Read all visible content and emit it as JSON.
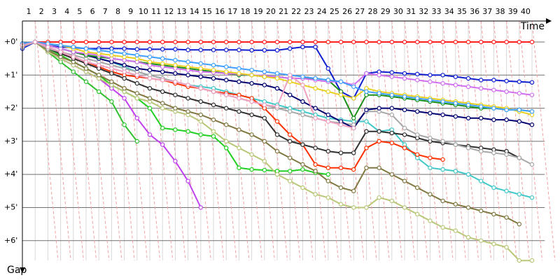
{
  "chart_data": {
    "type": "line",
    "x_label": "Time",
    "y_label": "Gap",
    "x": [
      0,
      1,
      2,
      3,
      4,
      5,
      6,
      7,
      8,
      9,
      10,
      11,
      12,
      13,
      14,
      15,
      16,
      17,
      18,
      19,
      20,
      21,
      22,
      23,
      24,
      25,
      26,
      27,
      28,
      29,
      30,
      31,
      32,
      33,
      34,
      35,
      36,
      37,
      38,
      39,
      40
    ],
    "xlim": [
      0,
      41
    ],
    "xticks": [
      1,
      2,
      3,
      4,
      5,
      6,
      7,
      8,
      9,
      10,
      11,
      12,
      13,
      14,
      15,
      16,
      17,
      18,
      19,
      20,
      21,
      22,
      23,
      24,
      25,
      26,
      27,
      28,
      29,
      30,
      31,
      32,
      33,
      34,
      35,
      36,
      37,
      38,
      39,
      40
    ],
    "ylim": [
      -0.6,
      6.6
    ],
    "yticks": [
      {
        "value": 0,
        "label": "+0'"
      },
      {
        "value": 1,
        "label": "+1'"
      },
      {
        "value": 2,
        "label": "+2'"
      },
      {
        "value": 3,
        "label": "+3'"
      },
      {
        "value": 4,
        "label": "+4'"
      },
      {
        "value": 5,
        "label": "+5'"
      },
      {
        "value": 6,
        "label": "+6'"
      }
    ],
    "grid": true,
    "series": [
      {
        "color": "#ff2020",
        "values": [
          0.1,
          0,
          0,
          0,
          0,
          0,
          0,
          0,
          0,
          0,
          0,
          0,
          0,
          0,
          0,
          0,
          0,
          0,
          0,
          0,
          0,
          0,
          0,
          0,
          0,
          0,
          0,
          0,
          0,
          0,
          0,
          0,
          0,
          0,
          0,
          0,
          0,
          0,
          0,
          0,
          0
        ]
      },
      {
        "color": "#1020d0",
        "values": [
          0.2,
          0,
          0.1,
          0.15,
          0.17,
          0.2,
          0.2,
          0.2,
          0.2,
          0.22,
          0.22,
          0.22,
          0.22,
          0.24,
          0.24,
          0.24,
          0.24,
          0.24,
          0.25,
          0.25,
          0.25,
          0.2,
          0.15,
          0.15,
          0.8,
          1.5,
          1.7,
          0.95,
          0.9,
          0.92,
          0.95,
          0.97,
          1.0,
          1.0,
          1.05,
          1.1,
          1.15,
          1.15,
          1.18,
          1.2,
          1.22
        ]
      },
      {
        "color": "#c040f0",
        "values": [
          0.1,
          0,
          0.3,
          0.5,
          0.7,
          0.9,
          1.1,
          1.4,
          1.7,
          2.3,
          2.8,
          3.1,
          3.6,
          4.2,
          5.0,
          null,
          null,
          null,
          null,
          null,
          null,
          null,
          null,
          null,
          null,
          null,
          null,
          null,
          null,
          null,
          null,
          null,
          null,
          null,
          null,
          null,
          null,
          null,
          null,
          null,
          null
        ]
      },
      {
        "color": "#30c030",
        "values": [
          0.05,
          0,
          0.3,
          0.6,
          0.9,
          1.2,
          1.5,
          1.8,
          2.5,
          3.0,
          null,
          null,
          null,
          null,
          null,
          null,
          null,
          null,
          null,
          null,
          null,
          null,
          null,
          null,
          null,
          null,
          null,
          null,
          null,
          null,
          null,
          null,
          null,
          null,
          null,
          null,
          null,
          null,
          null,
          null,
          null
        ]
      },
      {
        "color": "#20d020",
        "values": [
          0.1,
          0,
          0.2,
          0.4,
          0.6,
          0.8,
          1.0,
          1.3,
          1.5,
          1.7,
          2.0,
          2.6,
          2.65,
          2.7,
          2.8,
          2.85,
          3.2,
          3.8,
          3.85,
          3.87,
          3.9,
          3.9,
          3.85,
          3.95,
          4.0,
          null,
          null,
          null,
          null,
          null,
          null,
          null,
          null,
          null,
          null,
          null,
          null,
          null,
          null,
          null,
          null
        ]
      },
      {
        "color": "#b8c878",
        "values": [
          0.1,
          0,
          0.3,
          0.5,
          0.7,
          0.9,
          1.1,
          1.3,
          1.5,
          1.7,
          1.8,
          2.0,
          2.1,
          2.2,
          2.4,
          2.7,
          3.0,
          3.2,
          3.4,
          3.6,
          4.0,
          4.2,
          4.4,
          4.6,
          4.7,
          4.9,
          5.0,
          5.0,
          4.7,
          4.8,
          5.0,
          5.2,
          5.4,
          5.6,
          5.7,
          5.9,
          6.0,
          6.1,
          6.2,
          6.6,
          6.6
        ]
      },
      {
        "color": "#807840",
        "values": [
          0.1,
          0,
          0.25,
          0.45,
          0.6,
          0.8,
          1.0,
          1.2,
          1.4,
          1.55,
          1.7,
          1.85,
          2.0,
          2.1,
          2.2,
          2.35,
          2.5,
          2.65,
          2.8,
          3.0,
          3.3,
          3.5,
          3.7,
          3.9,
          4.2,
          4.4,
          4.5,
          3.8,
          3.8,
          4.0,
          4.2,
          4.4,
          4.6,
          4.8,
          4.9,
          5.0,
          5.1,
          5.2,
          5.3,
          5.5,
          null
        ]
      },
      {
        "color": "#40c8c8",
        "values": [
          0.05,
          0,
          0.1,
          0.2,
          0.3,
          0.4,
          0.5,
          0.6,
          0.75,
          0.9,
          1.0,
          1.1,
          1.2,
          1.3,
          1.35,
          1.4,
          1.5,
          1.6,
          1.7,
          1.8,
          1.9,
          2.0,
          2.1,
          2.2,
          2.3,
          2.35,
          2.4,
          2.4,
          2.7,
          2.65,
          3.1,
          3.5,
          3.8,
          3.85,
          3.9,
          4.0,
          4.2,
          4.4,
          4.5,
          4.6,
          4.7
        ]
      },
      {
        "color": "#ff3000",
        "values": [
          0.1,
          0,
          0.15,
          0.3,
          0.45,
          0.6,
          0.75,
          0.9,
          1.0,
          1.05,
          1.1,
          1.15,
          1.25,
          1.35,
          1.4,
          1.5,
          1.55,
          1.6,
          1.7,
          2.0,
          2.4,
          2.8,
          3.1,
          3.7,
          3.8,
          3.8,
          3.85,
          3.2,
          3.0,
          3.05,
          3.2,
          3.4,
          3.5,
          3.55,
          null,
          null,
          null,
          null,
          null,
          null,
          null
        ]
      },
      {
        "color": "#303030",
        "values": [
          0.1,
          0,
          0.2,
          0.35,
          0.5,
          0.65,
          0.8,
          0.95,
          1.1,
          1.25,
          1.4,
          1.5,
          1.6,
          1.7,
          1.8,
          1.9,
          2.0,
          2.1,
          2.2,
          2.3,
          2.8,
          3.0,
          3.1,
          3.2,
          3.3,
          3.35,
          3.35,
          2.7,
          2.7,
          2.75,
          2.8,
          2.9,
          3.0,
          3.05,
          3.1,
          3.15,
          3.2,
          3.25,
          3.3,
          3.5,
          null
        ]
      },
      {
        "color": "#a8a8a8",
        "values": [
          0.15,
          0,
          0.2,
          0.3,
          0.4,
          0.5,
          0.6,
          0.7,
          0.8,
          0.9,
          1.0,
          1.1,
          1.2,
          1.3,
          1.4,
          1.5,
          1.6,
          1.7,
          1.8,
          1.9,
          2.0,
          2.1,
          2.2,
          2.3,
          2.4,
          2.45,
          2.5,
          2.1,
          2.1,
          2.2,
          2.6,
          2.8,
          2.9,
          3.0,
          3.1,
          3.2,
          3.3,
          3.35,
          3.4,
          3.5,
          3.7
        ]
      },
      {
        "color": "#000070",
        "values": [
          0.05,
          0,
          0.1,
          0.2,
          0.3,
          0.4,
          0.5,
          0.6,
          0.7,
          0.8,
          0.85,
          0.9,
          0.95,
          1.0,
          1.05,
          1.1,
          1.15,
          1.2,
          1.25,
          1.3,
          1.4,
          1.6,
          1.8,
          2.0,
          2.2,
          2.4,
          2.6,
          2.05,
          2.0,
          2.0,
          2.05,
          2.1,
          2.15,
          2.2,
          2.25,
          2.3,
          2.3,
          2.35,
          2.35,
          2.4,
          2.5
        ]
      },
      {
        "color": "#189018",
        "values": [
          0.1,
          0,
          0.1,
          0.2,
          0.3,
          0.4,
          0.45,
          0.5,
          0.55,
          0.6,
          0.65,
          0.7,
          0.75,
          0.8,
          0.85,
          0.9,
          0.95,
          1.0,
          1.0,
          1.05,
          1.05,
          1.1,
          1.1,
          1.1,
          1.15,
          1.5,
          2.3,
          1.6,
          1.6,
          1.65,
          1.7,
          1.75,
          1.8,
          1.85,
          1.9,
          1.95,
          2.0,
          2.0,
          2.05,
          2.05,
          2.1
        ]
      },
      {
        "color": "#d070f0",
        "values": [
          0.1,
          0,
          0.1,
          0.2,
          0.3,
          0.35,
          0.4,
          0.5,
          0.55,
          0.6,
          0.7,
          0.75,
          0.8,
          0.85,
          0.9,
          0.92,
          0.95,
          0.97,
          1.0,
          1.02,
          1.05,
          1.1,
          1.1,
          1.15,
          1.2,
          1.2,
          1.3,
          0.95,
          1.0,
          1.05,
          1.1,
          1.15,
          1.2,
          1.25,
          1.3,
          1.35,
          1.4,
          1.45,
          1.5,
          1.55,
          1.6
        ]
      },
      {
        "color": "#e8d020",
        "values": [
          0.1,
          0,
          0.05,
          0.1,
          0.2,
          0.3,
          0.35,
          0.4,
          0.45,
          0.5,
          0.6,
          0.65,
          0.7,
          0.75,
          0.8,
          0.85,
          0.9,
          0.95,
          1.0,
          1.05,
          1.1,
          1.2,
          1.3,
          1.4,
          1.5,
          1.6,
          1.7,
          1.4,
          1.5,
          1.55,
          1.6,
          1.65,
          1.7,
          1.75,
          1.8,
          1.85,
          1.9,
          1.95,
          2.0,
          2.1,
          2.2
        ]
      },
      {
        "color": "#40a0ff",
        "values": [
          0.05,
          0,
          0.05,
          0.1,
          0.15,
          0.2,
          0.25,
          0.3,
          0.35,
          0.4,
          0.45,
          0.5,
          0.55,
          0.6,
          0.65,
          0.7,
          0.75,
          0.8,
          0.85,
          0.9,
          0.95,
          1.0,
          1.05,
          1.1,
          1.15,
          1.2,
          1.35,
          1.5,
          1.55,
          1.6,
          1.65,
          1.7,
          1.75,
          1.8,
          1.85,
          1.9,
          1.95,
          2.0,
          2.05,
          2.05,
          2.1
        ]
      },
      {
        "color": "#f0a0c0",
        "values": [
          0.1,
          0,
          0.15,
          0.3,
          0.45,
          0.6,
          0.7,
          0.8,
          0.9,
          1.0,
          1.1,
          1.15,
          1.2,
          1.3,
          1.4,
          1.5,
          1.6,
          1.7,
          1.8,
          1.9,
          1.95,
          1.0,
          1.3,
          2.3,
          2.4,
          2.5,
          2.6,
          null,
          null,
          null,
          null,
          null,
          null,
          null,
          null,
          null,
          null,
          null,
          null,
          null,
          null
        ]
      }
    ]
  }
}
